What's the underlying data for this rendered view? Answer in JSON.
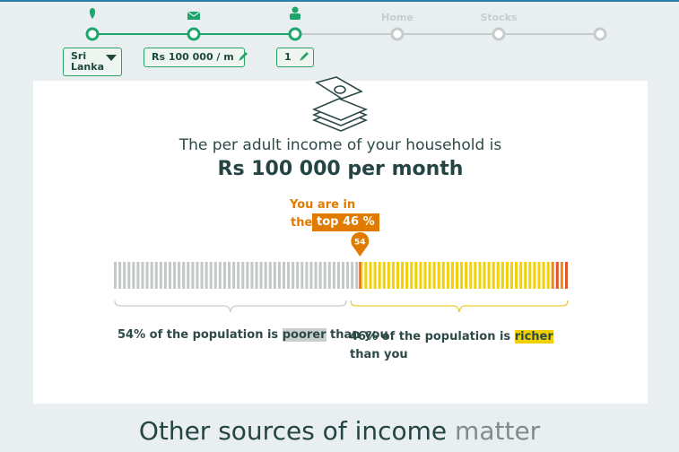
{
  "steps": {
    "labels": [
      "Home",
      "Stocks"
    ]
  },
  "pills": {
    "country": "Sri Lanka",
    "income": "Rs 100 000 / m",
    "adults": "1"
  },
  "card": {
    "intro": "The per adult income of your household is",
    "amount": "Rs 100 000 per month",
    "rank": {
      "line1": "You are in",
      "line2": "the",
      "badge": "top 46 %"
    },
    "marker": 54,
    "left": {
      "text": "54% of the population is",
      "highlight": "poorer",
      "suffix": "than you"
    },
    "right": {
      "text": "46% of the population is",
      "highlight": "richer",
      "suffix": "than you"
    }
  },
  "heading": {
    "main": "Other sources of income",
    "muted": "matter"
  }
}
